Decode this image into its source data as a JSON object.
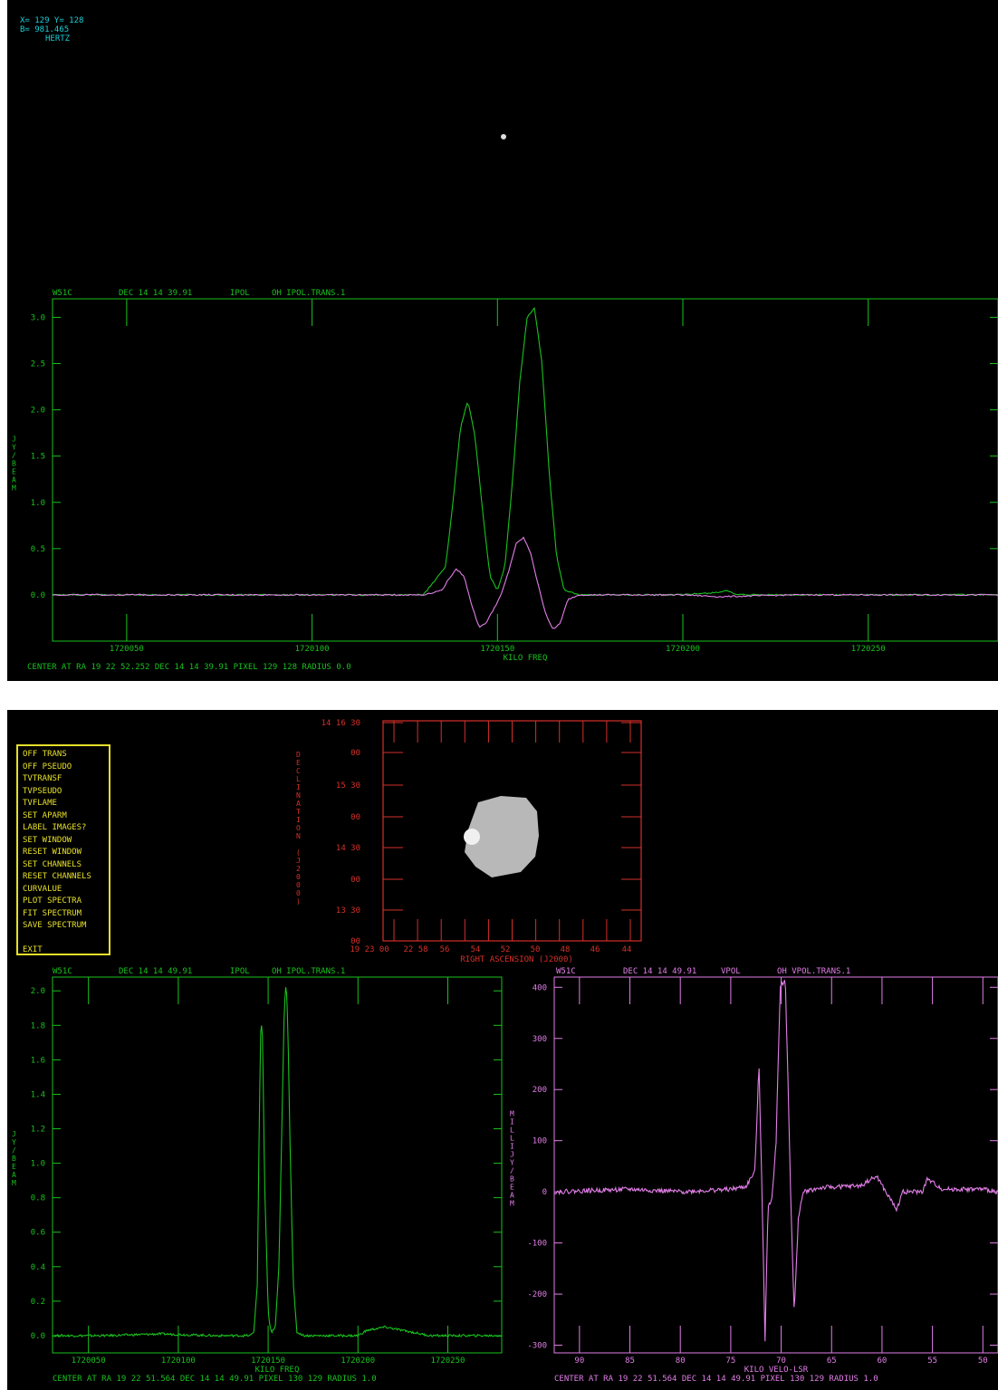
{
  "colors": {
    "green": "#19c21e",
    "magenta": "#e27ee8",
    "red": "#d5302a",
    "cyan": "#18d0d8",
    "yellow": "#e6e02a",
    "background": "#000000"
  },
  "top_panel": {
    "cursor_readout": {
      "xy": "X= 129 Y= 128",
      "value": "B= 981.465",
      "unit": "HERTZ"
    }
  },
  "menu": {
    "items": [
      "OFF TRANS",
      "OFF PSEUDO",
      "TVTRANSF",
      "TVPSEUDO",
      "TVFLAME",
      "SET APARM",
      "LABEL IMAGES?",
      "SET WINDOW",
      "RESET WINDOW",
      "SET CHANNELS",
      "RESET CHANNELS",
      "CURVALUE",
      "PLOT SPECTRA",
      "FIT SPECTRUM",
      "SAVE SPECTRUM"
    ],
    "exit": "EXIT"
  },
  "chart_data": [
    {
      "type": "line",
      "id": "top-spectrum",
      "header": [
        "W51C",
        "DEC 14 14 39.91",
        "IPOL",
        "OH IPOL.TRANS.1"
      ],
      "xlabel": "KILO FREQ",
      "ylabel": "JY/BEAM",
      "xlim": [
        1720030,
        1720285
      ],
      "ylim": [
        -0.5,
        3.2
      ],
      "xticks": [
        1720050,
        1720100,
        1720150,
        1720200,
        1720250
      ],
      "xtick_labels": [
        "1720050",
        "1720100",
        "1720150",
        "1720200",
        "1720250"
      ],
      "yticks": [
        0.0,
        0.5,
        1.0,
        1.5,
        2.0,
        2.5,
        3.0
      ],
      "ytick_labels": [
        "0.0",
        "0.5",
        "1.0",
        "1.5",
        "2.0",
        "2.5",
        "3.0"
      ],
      "footer": "CENTER AT RA 19 22 52.252  DEC 14 14 39.91  PIXEL 129 128   RADIUS 0.0",
      "series": [
        {
          "color": "green",
          "x": [
            1720030,
            1720060,
            1720090,
            1720130,
            1720136,
            1720138,
            1720140,
            1720142,
            1720144,
            1720146,
            1720148,
            1720150,
            1720152,
            1720154,
            1720156,
            1720158,
            1720160,
            1720162,
            1720164,
            1720166,
            1720168,
            1720172,
            1720200,
            1720210,
            1720212,
            1720214,
            1720230,
            1720260,
            1720285
          ],
          "y": [
            0.0,
            0.0,
            0.0,
            0.0,
            0.3,
            1.0,
            1.8,
            2.1,
            1.7,
            0.9,
            0.2,
            0.05,
            0.3,
            1.2,
            2.3,
            3.0,
            3.1,
            2.5,
            1.3,
            0.4,
            0.05,
            0.0,
            0.0,
            0.03,
            0.05,
            0.0,
            0.0,
            0.0,
            0.0
          ]
        },
        {
          "color": "magenta",
          "x": [
            1720030,
            1720060,
            1720090,
            1720130,
            1720135,
            1720137,
            1720139,
            1720141,
            1720143,
            1720145,
            1720147,
            1720149,
            1720151,
            1720153,
            1720155,
            1720157,
            1720159,
            1720161,
            1720163,
            1720165,
            1720167,
            1720169,
            1720172,
            1720200,
            1720210,
            1720230,
            1720260,
            1720285
          ],
          "y": [
            0.0,
            0.0,
            0.0,
            0.0,
            0.05,
            0.18,
            0.28,
            0.2,
            -0.1,
            -0.35,
            -0.3,
            -0.15,
            0.0,
            0.25,
            0.55,
            0.62,
            0.45,
            0.1,
            -0.2,
            -0.38,
            -0.3,
            -0.05,
            0.0,
            0.0,
            -0.02,
            0.0,
            0.0,
            0.0
          ]
        }
      ]
    },
    {
      "type": "heatmap",
      "id": "channel-map",
      "xlabel": "RIGHT ASCENSION (J2000)",
      "ylabel": "DECLINATION (J2000)",
      "x_tick_labels": [
        "19 23 00",
        "22 58",
        "56",
        "54",
        "52",
        "50",
        "48",
        "46",
        "44"
      ],
      "y_tick_labels": [
        "14 16 30",
        "00",
        "15 30",
        "00",
        "14 30",
        "00",
        "13 30",
        "00"
      ],
      "source_shape": "grey blob"
    },
    {
      "type": "line",
      "id": "bottom-left-spectrum",
      "header": [
        "W51C",
        "DEC 14 14 49.91",
        "IPOL",
        "OH IPOL.TRANS.1"
      ],
      "xlabel": "KILO FREQ",
      "ylabel": "JY/BEAM",
      "xlim": [
        1720030,
        1720280
      ],
      "ylim": [
        -0.1,
        2.08
      ],
      "xticks": [
        1720050,
        1720100,
        1720150,
        1720200,
        1720250
      ],
      "xtick_labels": [
        "1720050",
        "1720100",
        "1720150",
        "1720200",
        "1720250"
      ],
      "yticks": [
        0.0,
        0.2,
        0.4,
        0.6,
        0.8,
        1.0,
        1.2,
        1.4,
        1.6,
        1.8,
        2.0
      ],
      "ytick_labels": [
        "0.0",
        "0.2",
        "0.4",
        "0.6",
        "0.8",
        "1.0",
        "1.2",
        "1.4",
        "1.6",
        "1.8",
        "2.0"
      ],
      "footer": "CENTER AT RA 19 22 51.564  DEC 14 14 49.91  PIXEL 130 129   RADIUS 1.0",
      "series": [
        {
          "color": "green",
          "x": [
            1720030,
            1720060,
            1720090,
            1720120,
            1720140,
            1720142,
            1720144,
            1720145,
            1720146,
            1720147,
            1720148,
            1720150,
            1720151,
            1720152,
            1720154,
            1720156,
            1720158,
            1720159,
            1720160,
            1720161,
            1720162,
            1720164,
            1720166,
            1720170,
            1720200,
            1720205,
            1720215,
            1720220,
            1720240,
            1720280
          ],
          "y": [
            0.0,
            0.0,
            0.01,
            0.0,
            0.0,
            0.02,
            0.3,
            1.2,
            1.85,
            1.7,
            0.9,
            0.15,
            0.05,
            0.02,
            0.05,
            0.4,
            1.4,
            1.9,
            2.05,
            1.8,
            1.2,
            0.3,
            0.02,
            0.0,
            0.0,
            0.03,
            0.05,
            0.04,
            0.0,
            0.0
          ]
        }
      ]
    },
    {
      "type": "line",
      "id": "bottom-right-spectrum",
      "header": [
        "W51C",
        "DEC 14 14 49.91",
        "VPOL",
        "OH VPOL.TRANS.1"
      ],
      "xlabel": "KILO VELO-LSR",
      "ylabel": "MILLIJY/BEAM",
      "xlim": [
        92.5,
        48.5
      ],
      "ylim": [
        -315,
        420
      ],
      "xticks": [
        90,
        85,
        80,
        75,
        70,
        65,
        60,
        55,
        50
      ],
      "xtick_labels": [
        "90",
        "85",
        "80",
        "75",
        "70",
        "65",
        "60",
        "55",
        "50"
      ],
      "yticks": [
        -300,
        -200,
        -100,
        0,
        100,
        200,
        300,
        400
      ],
      "ytick_labels": [
        "-300",
        "-200",
        "-100",
        "0",
        "100",
        "200",
        "300",
        "400"
      ],
      "footer": "CENTER AT RA 19 22 51.564  DEC 14 14 49.91  PIXEL 130 129   RADIUS 1.0",
      "series": [
        {
          "color": "magenta",
          "x": [
            92.5,
            85,
            80,
            75,
            73.5,
            72.6,
            72.2,
            71.9,
            71.6,
            71.3,
            70.9,
            70.5,
            70.1,
            69.6,
            69.3,
            69.0,
            68.7,
            68.3,
            67.8,
            66,
            62,
            61.5,
            60.5,
            59.5,
            58.5,
            58,
            56,
            55.5,
            54,
            50,
            48.5
          ],
          "y": [
            0,
            5,
            0,
            5,
            10,
            40,
            250,
            0,
            -290,
            -30,
            -10,
            100,
            400,
            415,
            200,
            -50,
            -240,
            -50,
            0,
            8,
            12,
            20,
            30,
            -5,
            -35,
            0,
            0,
            25,
            5,
            5,
            0
          ]
        }
      ]
    }
  ]
}
